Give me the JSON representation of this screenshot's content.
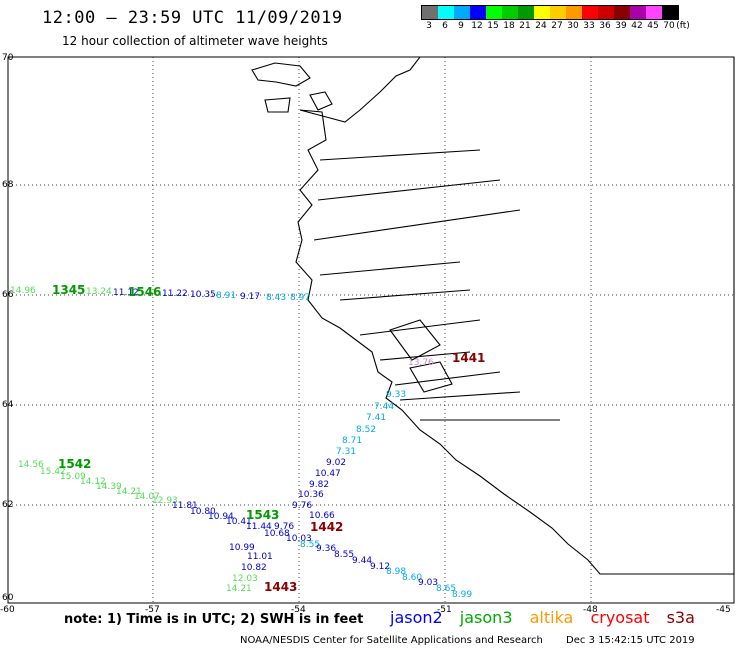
{
  "header": {
    "title": "12:00 – 23:59 UTC 11/09/2019",
    "subtitle": "12 hour collection of altimeter wave heights"
  },
  "legend": {
    "unit": "(ft)",
    "bins": [
      {
        "label": "3",
        "color": "#707070"
      },
      {
        "label": "6",
        "color": "#00ffff"
      },
      {
        "label": "9",
        "color": "#00aaff"
      },
      {
        "label": "12",
        "color": "#0000ff"
      },
      {
        "label": "15",
        "color": "#00ff00"
      },
      {
        "label": "18",
        "color": "#00cc00"
      },
      {
        "label": "21",
        "color": "#009900"
      },
      {
        "label": "24",
        "color": "#ffff00"
      },
      {
        "label": "27",
        "color": "#ffcc00"
      },
      {
        "label": "30",
        "color": "#ff9900"
      },
      {
        "label": "33",
        "color": "#ff0000"
      },
      {
        "label": "36",
        "color": "#cc0000"
      },
      {
        "label": "39",
        "color": "#880000"
      },
      {
        "label": "42",
        "color": "#aa00aa"
      },
      {
        "label": "45",
        "color": "#ff44ff"
      },
      {
        "label": "70",
        "color": "#000000"
      }
    ]
  },
  "axes": {
    "lat_labels": [
      "70",
      "68",
      "66",
      "64",
      "62",
      "60"
    ],
    "lon_labels": [
      "-60",
      "-57",
      "-54",
      "-51",
      "-48",
      "-45"
    ]
  },
  "tracks": [
    {
      "labels": [
        "14.96",
        "13.14",
        "13.24",
        "11.12",
        "11.16",
        "11.22",
        "10.35",
        "8.91",
        "9.17",
        "8.43",
        "8.97"
      ],
      "colors": [
        "#55dd55",
        "#55dd55",
        "#55dd55",
        "#0000cc",
        "#0000cc",
        "#0000cc",
        "#0000cc",
        "#00aaee",
        "#0000cc",
        "#00aaee",
        "#00aaee"
      ],
      "pass": "1345",
      "pass2": "1546"
    },
    {
      "labels": [
        "14.56",
        "15.42",
        "15.09",
        "14.12",
        "14.39",
        "14.21",
        "14.07",
        "12.93",
        "11.81",
        "10.80",
        "10.94",
        "10.41",
        "11.44",
        "9.76",
        "10.66",
        "9.76",
        "10.36",
        "9.82",
        "10.47",
        "9.02",
        "7.31",
        "8.71",
        "8.52",
        "7.41",
        "7.44",
        "9.33"
      ],
      "pass": "1542",
      "pass2": "1543"
    },
    {
      "labels": [
        "9.76",
        "10.68",
        "10.03",
        "8.55",
        "9.36",
        "8.55",
        "9.44",
        "9.12",
        "8.98",
        "8.60",
        "9.03",
        "8.65",
        "8.99"
      ],
      "pass": "1442"
    },
    {
      "labels": [
        "11.01",
        "10.99",
        "10.82",
        "12.03",
        "14.21"
      ],
      "pass": "1443"
    },
    {
      "labels": [
        "13.76"
      ],
      "pass": "1441"
    }
  ],
  "footer": {
    "note": "note:  1) Time is in UTC;  2) SWH is in feet",
    "satellites": [
      {
        "name": "jason2",
        "color": "#0000ff"
      },
      {
        "name": "jason3",
        "color": "#00aa00"
      },
      {
        "name": "altika",
        "color": "#ff9900"
      },
      {
        "name": "cryosat",
        "color": "#ff0000"
      },
      {
        "name": "s3a",
        "color": "#880000"
      }
    ],
    "credit": "NOAA/NESDIS Center for Satellite Applications and Research",
    "timestamp": "Dec  3 15:42:15 UTC 2019"
  }
}
